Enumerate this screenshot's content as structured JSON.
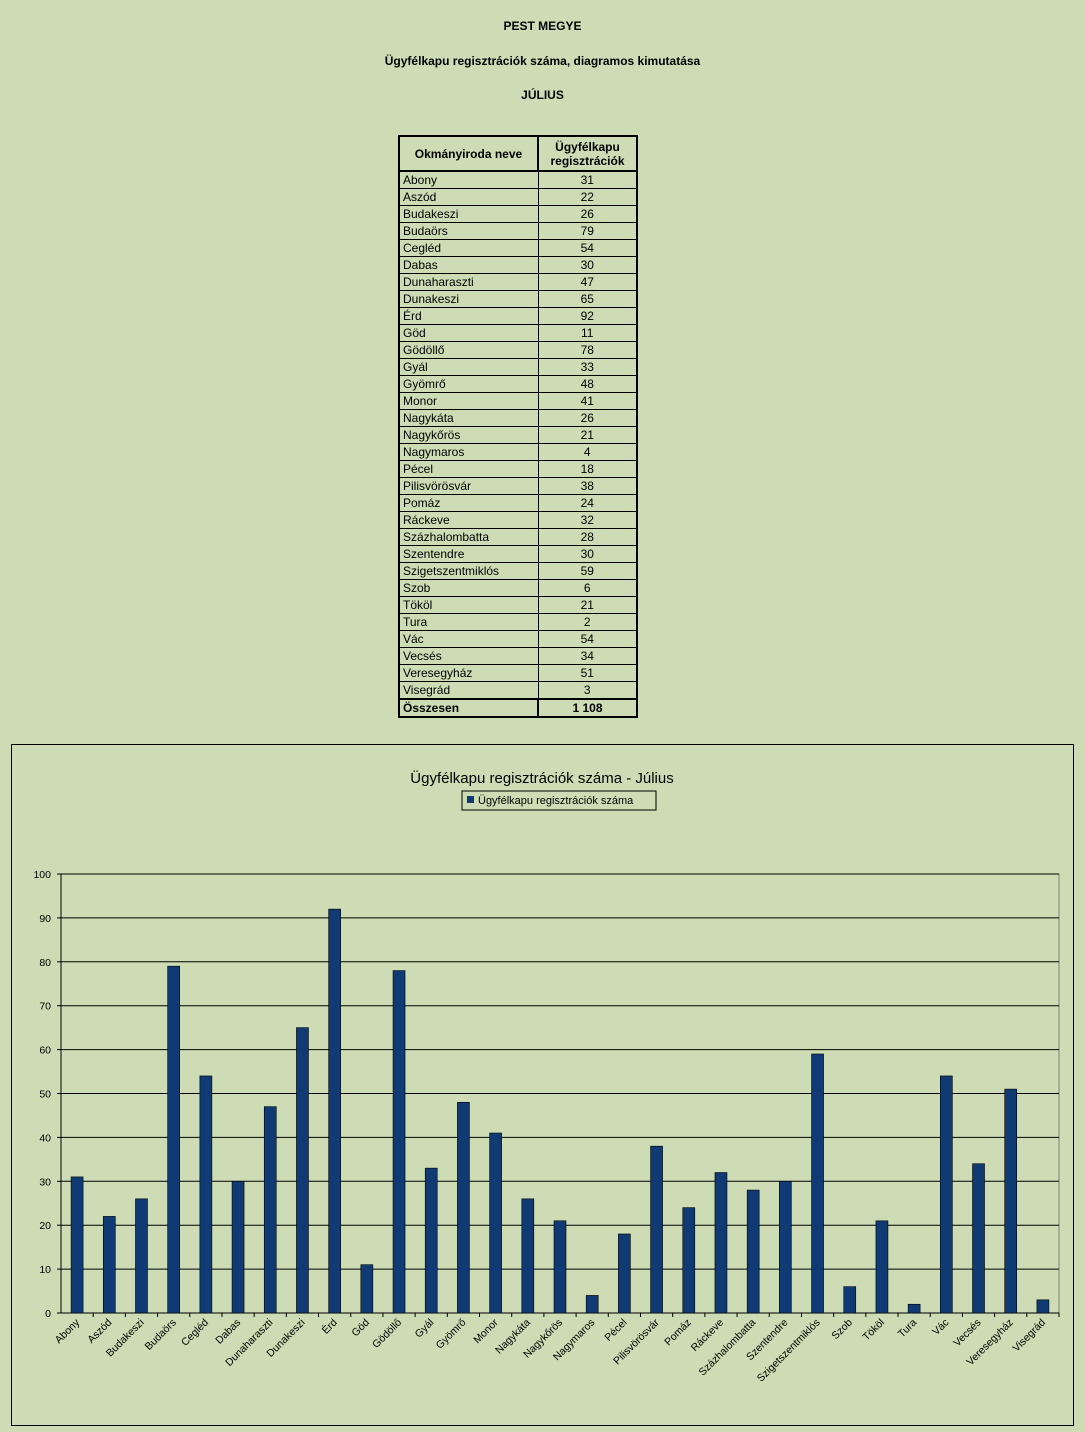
{
  "header": {
    "line1": "PEST MEGYE",
    "line2": "Ügyfélkapu regisztrációk száma, diagramos kimutatása",
    "line3": "JÚLIUS"
  },
  "table": {
    "col1": "Okmányiroda neve",
    "col2_line1": "Ügyfélkapu",
    "col2_line2": "regisztrációk",
    "rows": [
      {
        "name": "Abony",
        "value": "31"
      },
      {
        "name": "Aszód",
        "value": "22"
      },
      {
        "name": "Budakeszi",
        "value": "26"
      },
      {
        "name": "Budaörs",
        "value": "79"
      },
      {
        "name": "Cegléd",
        "value": "54"
      },
      {
        "name": "Dabas",
        "value": "30"
      },
      {
        "name": "Dunaharaszti",
        "value": "47"
      },
      {
        "name": "Dunakeszi",
        "value": "65"
      },
      {
        "name": "Érd",
        "value": "92"
      },
      {
        "name": "Göd",
        "value": "11"
      },
      {
        "name": "Gödöllő",
        "value": "78"
      },
      {
        "name": "Gyál",
        "value": "33"
      },
      {
        "name": "Gyömrő",
        "value": "48"
      },
      {
        "name": "Monor",
        "value": "41"
      },
      {
        "name": "Nagykáta",
        "value": "26"
      },
      {
        "name": "Nagykőrös",
        "value": "21"
      },
      {
        "name": "Nagymaros",
        "value": "4"
      },
      {
        "name": "Pécel",
        "value": "18"
      },
      {
        "name": "Pilisvörösvár",
        "value": "38"
      },
      {
        "name": "Pomáz",
        "value": "24"
      },
      {
        "name": "Ráckeve",
        "value": "32"
      },
      {
        "name": "Százhalombatta",
        "value": "28"
      },
      {
        "name": "Szentendre",
        "value": "30"
      },
      {
        "name": "Szigetszentmiklós",
        "value": "59"
      },
      {
        "name": "Szob",
        "value": "6"
      },
      {
        "name": "Tököl",
        "value": "21"
      },
      {
        "name": "Tura",
        "value": "2"
      },
      {
        "name": "Vác",
        "value": "54"
      },
      {
        "name": "Vecsés",
        "value": "34"
      },
      {
        "name": "Veresegyház",
        "value": "51"
      },
      {
        "name": "Visegrád",
        "value": "3"
      }
    ],
    "total_label": "Összesen",
    "total_value": "1 108"
  },
  "chart_data": {
    "type": "bar",
    "title": "Ügyfélkapu regisztrációk száma - Július",
    "categories": [
      "Abony",
      "Aszód",
      "Budakeszi",
      "Budaörs",
      "Cegléd",
      "Dabas",
      "Dunaharaszti",
      "Dunakeszi",
      "Érd",
      "Göd",
      "Gödöllő",
      "Gyál",
      "Gyömrő",
      "Monor",
      "Nagykáta",
      "Nagykőrös",
      "Nagymaros",
      "Pécel",
      "Pilisvörösvár",
      "Pomáz",
      "Ráckeve",
      "Százhalombatta",
      "Szentendre",
      "Szigetszentmiklós",
      "Szob",
      "Tököl",
      "Tura",
      "Vác",
      "Vecsés",
      "Veresegyház",
      "Visegrád"
    ],
    "series": [
      {
        "name": "Ügyfélkapu regisztrációk száma",
        "values": [
          31,
          22,
          26,
          79,
          54,
          30,
          47,
          65,
          92,
          11,
          78,
          33,
          48,
          41,
          26,
          21,
          4,
          18,
          38,
          24,
          32,
          28,
          30,
          59,
          6,
          21,
          2,
          54,
          34,
          51,
          3
        ]
      }
    ],
    "ylim": [
      0,
      100
    ],
    "yticks": [
      0,
      10,
      20,
      30,
      40,
      50,
      60,
      70,
      80,
      90,
      100
    ],
    "grid": true,
    "legend": "top-center",
    "bar_color": "#0f3a73",
    "plot_background": "#cddcb4"
  }
}
